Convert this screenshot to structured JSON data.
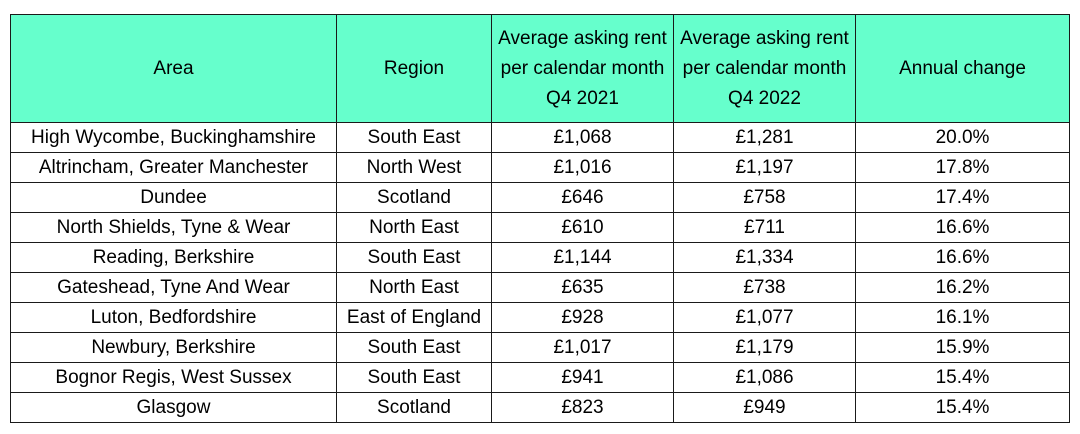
{
  "table": {
    "headers": {
      "area": "Area",
      "region": "Region",
      "rent_q4_2021": "Average asking rent per calendar month Q4 2021",
      "rent_q4_2022": "Average asking rent per calendar month Q4 2022",
      "annual_change": "Annual change"
    },
    "rows": [
      {
        "area": "High Wycombe, Buckinghamshire",
        "region": "South East",
        "rent_q4_2021": "£1,068",
        "rent_q4_2022": "£1,281",
        "annual_change": "20.0%"
      },
      {
        "area": "Altrincham, Greater Manchester",
        "region": "North West",
        "rent_q4_2021": "£1,016",
        "rent_q4_2022": "£1,197",
        "annual_change": "17.8%"
      },
      {
        "area": "Dundee",
        "region": "Scotland",
        "rent_q4_2021": "£646",
        "rent_q4_2022": "£758",
        "annual_change": "17.4%"
      },
      {
        "area": "North Shields, Tyne & Wear",
        "region": "North East",
        "rent_q4_2021": "£610",
        "rent_q4_2022": "£711",
        "annual_change": "16.6%"
      },
      {
        "area": "Reading, Berkshire",
        "region": "South East",
        "rent_q4_2021": "£1,144",
        "rent_q4_2022": "£1,334",
        "annual_change": "16.6%"
      },
      {
        "area": "Gateshead, Tyne And Wear",
        "region": "North East",
        "rent_q4_2021": "£635",
        "rent_q4_2022": "£738",
        "annual_change": "16.2%"
      },
      {
        "area": "Luton, Bedfordshire",
        "region": "East of England",
        "rent_q4_2021": "£928",
        "rent_q4_2022": "£1,077",
        "annual_change": "16.1%"
      },
      {
        "area": "Newbury, Berkshire",
        "region": "South East",
        "rent_q4_2021": "£1,017",
        "rent_q4_2022": "£1,179",
        "annual_change": "15.9%"
      },
      {
        "area": "Bognor Regis, West Sussex",
        "region": "South East",
        "rent_q4_2021": "£941",
        "rent_q4_2022": "£1,086",
        "annual_change": "15.4%"
      },
      {
        "area": "Glasgow",
        "region": "Scotland",
        "rent_q4_2021": "£823",
        "rent_q4_2022": "£949",
        "annual_change": "15.4%"
      }
    ]
  },
  "colors": {
    "header_background": "#66ffcc",
    "border": "#1a1a1a",
    "text": "#000000"
  }
}
